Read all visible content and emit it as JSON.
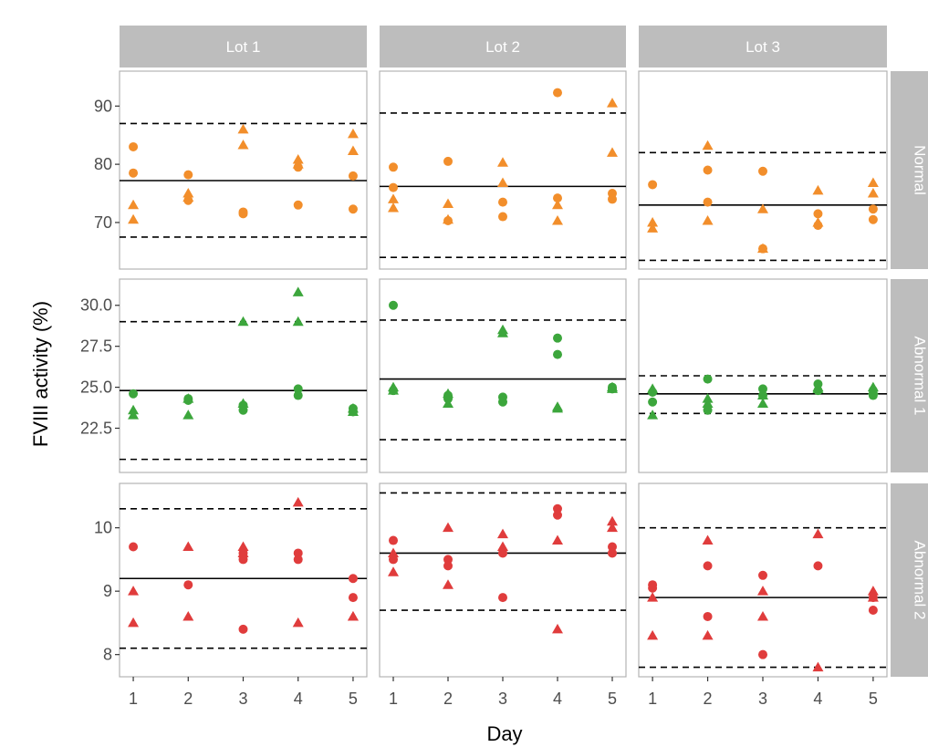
{
  "chart_data": {
    "type": "scatter",
    "xlabel": "Day",
    "ylabel": "FVIII activity (%)",
    "columns": [
      "Lot 1",
      "Lot 2",
      "Lot 3"
    ],
    "rows": [
      "Normal",
      "Abnormal 1",
      "Abnormal 2"
    ],
    "x_ticks": [
      "1",
      "2",
      "3",
      "4",
      "5"
    ],
    "xlim": [
      0.75,
      5.25
    ],
    "row_scales": [
      {
        "ylim": [
          62,
          96
        ],
        "ticks": [
          70,
          80,
          90
        ],
        "tick_labels": [
          "70",
          "80",
          "90"
        ]
      },
      {
        "ylim": [
          19.8,
          31.6
        ],
        "ticks": [
          22.5,
          25,
          27.5,
          30
        ],
        "tick_labels": [
          "22.5",
          "25.0",
          "27.5",
          "30.0"
        ]
      },
      {
        "ylim": [
          7.65,
          10.7
        ],
        "ticks": [
          8,
          9,
          10
        ],
        "tick_labels": [
          "8",
          "9",
          "10"
        ]
      }
    ],
    "row_colors": [
      "#f28e2b",
      "#3ca63c",
      "#e03c3c"
    ],
    "marker_types": [
      "circle",
      "triangle"
    ],
    "grid": false,
    "panels": [
      {
        "row": 0,
        "col": 0,
        "mean": 77.2,
        "lower": 67.5,
        "upper": 87.0,
        "circles": [
          [
            1,
            83.0
          ],
          [
            1,
            78.5
          ],
          [
            2,
            78.2
          ],
          [
            2,
            73.8
          ],
          [
            3,
            71.5
          ],
          [
            3,
            71.8
          ],
          [
            4,
            79.5
          ],
          [
            4,
            73.0
          ],
          [
            5,
            78.0
          ],
          [
            5,
            72.3
          ]
        ],
        "triangles": [
          [
            1,
            73.0
          ],
          [
            1,
            70.5
          ],
          [
            2,
            75.0
          ],
          [
            2,
            74.3
          ],
          [
            3,
            86.0
          ],
          [
            3,
            83.3
          ],
          [
            4,
            80.8
          ],
          [
            4,
            80.0
          ],
          [
            5,
            85.2
          ],
          [
            5,
            82.3
          ]
        ]
      },
      {
        "row": 0,
        "col": 1,
        "mean": 76.2,
        "lower": 64.0,
        "upper": 88.8,
        "circles": [
          [
            1,
            79.5
          ],
          [
            1,
            76.0
          ],
          [
            2,
            80.5
          ],
          [
            2,
            70.3
          ],
          [
            3,
            73.5
          ],
          [
            3,
            71.0
          ],
          [
            4,
            92.3
          ],
          [
            4,
            74.2
          ],
          [
            5,
            75.0
          ],
          [
            5,
            74.0
          ]
        ],
        "triangles": [
          [
            1,
            74.0
          ],
          [
            1,
            72.5
          ],
          [
            2,
            73.2
          ],
          [
            2,
            70.5
          ],
          [
            3,
            80.3
          ],
          [
            3,
            76.8
          ],
          [
            4,
            73.0
          ],
          [
            4,
            70.3
          ],
          [
            5,
            90.5
          ],
          [
            5,
            82.0
          ]
        ]
      },
      {
        "row": 0,
        "col": 2,
        "mean": 73.0,
        "lower": 63.5,
        "upper": 82.0,
        "circles": [
          [
            1,
            76.5
          ],
          [
            2,
            79.0
          ],
          [
            2,
            73.5
          ],
          [
            3,
            78.8
          ],
          [
            3,
            65.5
          ],
          [
            4,
            71.5
          ],
          [
            4,
            69.5
          ],
          [
            5,
            72.3
          ],
          [
            5,
            70.5
          ]
        ],
        "triangles": [
          [
            1,
            70.0
          ],
          [
            1,
            69.0
          ],
          [
            2,
            83.2
          ],
          [
            2,
            70.3
          ],
          [
            3,
            72.3
          ],
          [
            3,
            65.5
          ],
          [
            4,
            75.5
          ],
          [
            4,
            70.0
          ],
          [
            5,
            76.8
          ],
          [
            5,
            75.0
          ]
        ]
      },
      {
        "row": 1,
        "col": 0,
        "mean": 24.8,
        "lower": 20.6,
        "upper": 29.0,
        "circles": [
          [
            1,
            24.6
          ],
          [
            2,
            24.3
          ],
          [
            2,
            24.2
          ],
          [
            3,
            23.9
          ],
          [
            3,
            23.6
          ],
          [
            4,
            24.9
          ],
          [
            4,
            24.5
          ],
          [
            5,
            23.7
          ],
          [
            5,
            23.5
          ]
        ],
        "triangles": [
          [
            1,
            23.6
          ],
          [
            1,
            23.3
          ],
          [
            2,
            24.3
          ],
          [
            2,
            23.3
          ],
          [
            3,
            29.0
          ],
          [
            3,
            24.0
          ],
          [
            4,
            30.8
          ],
          [
            4,
            29.0
          ],
          [
            5,
            23.7
          ],
          [
            5,
            23.5
          ]
        ]
      },
      {
        "row": 1,
        "col": 1,
        "mean": 25.5,
        "lower": 21.8,
        "upper": 29.1,
        "circles": [
          [
            1,
            30.0
          ],
          [
            1,
            24.8
          ],
          [
            2,
            24.5
          ],
          [
            2,
            24.3
          ],
          [
            3,
            24.4
          ],
          [
            3,
            24.1
          ],
          [
            4,
            28.0
          ],
          [
            4,
            27.0
          ],
          [
            5,
            25.0
          ],
          [
            5,
            24.9
          ]
        ],
        "triangles": [
          [
            1,
            25.0
          ],
          [
            1,
            24.8
          ],
          [
            2,
            24.6
          ],
          [
            2,
            24.0
          ],
          [
            3,
            28.5
          ],
          [
            3,
            28.3
          ],
          [
            4,
            23.8
          ],
          [
            4,
            23.7
          ],
          [
            5,
            25.0
          ],
          [
            5,
            24.9
          ]
        ]
      },
      {
        "row": 1,
        "col": 2,
        "mean": 24.6,
        "lower": 23.4,
        "upper": 25.7,
        "circles": [
          [
            1,
            24.7
          ],
          [
            1,
            24.1
          ],
          [
            2,
            25.5
          ],
          [
            2,
            23.6
          ],
          [
            3,
            24.9
          ],
          [
            3,
            24.5
          ],
          [
            4,
            25.2
          ],
          [
            4,
            24.8
          ],
          [
            5,
            24.8
          ],
          [
            5,
            24.5
          ]
        ],
        "triangles": [
          [
            1,
            24.9
          ],
          [
            1,
            23.3
          ],
          [
            2,
            24.3
          ],
          [
            2,
            24.0
          ],
          [
            3,
            24.5
          ],
          [
            3,
            24.0
          ],
          [
            4,
            25.0
          ],
          [
            4,
            24.9
          ],
          [
            5,
            25.0
          ],
          [
            5,
            24.8
          ]
        ]
      },
      {
        "row": 2,
        "col": 0,
        "mean": 9.2,
        "lower": 8.1,
        "upper": 10.3,
        "circles": [
          [
            1,
            9.7
          ],
          [
            2,
            9.1
          ],
          [
            3,
            9.6
          ],
          [
            3,
            9.5
          ],
          [
            3,
            8.4
          ],
          [
            4,
            9.6
          ],
          [
            4,
            9.5
          ],
          [
            5,
            9.2
          ],
          [
            5,
            8.9
          ]
        ],
        "triangles": [
          [
            1,
            9.0
          ],
          [
            1,
            8.5
          ],
          [
            2,
            9.7
          ],
          [
            2,
            8.6
          ],
          [
            3,
            9.7
          ],
          [
            3,
            9.6
          ],
          [
            4,
            10.4
          ],
          [
            4,
            8.5
          ],
          [
            5,
            8.6
          ],
          [
            5,
            8.6
          ]
        ]
      },
      {
        "row": 2,
        "col": 1,
        "mean": 9.6,
        "lower": 8.7,
        "upper": 10.55,
        "circles": [
          [
            1,
            9.8
          ],
          [
            1,
            9.5
          ],
          [
            2,
            9.5
          ],
          [
            2,
            9.4
          ],
          [
            3,
            9.6
          ],
          [
            3,
            8.9
          ],
          [
            4,
            10.3
          ],
          [
            4,
            10.2
          ],
          [
            5,
            9.7
          ],
          [
            5,
            9.6
          ]
        ],
        "triangles": [
          [
            1,
            9.6
          ],
          [
            1,
            9.3
          ],
          [
            2,
            10.0
          ],
          [
            2,
            9.1
          ],
          [
            3,
            9.9
          ],
          [
            3,
            9.7
          ],
          [
            4,
            9.8
          ],
          [
            4,
            8.4
          ],
          [
            5,
            10.1
          ],
          [
            5,
            10.0
          ]
        ]
      },
      {
        "row": 2,
        "col": 2,
        "mean": 8.9,
        "lower": 7.8,
        "upper": 10.0,
        "circles": [
          [
            1,
            9.1
          ],
          [
            1,
            9.05
          ],
          [
            2,
            9.4
          ],
          [
            2,
            8.6
          ],
          [
            3,
            9.25
          ],
          [
            3,
            8.0
          ],
          [
            4,
            9.4
          ],
          [
            5,
            8.9
          ],
          [
            5,
            8.7
          ]
        ],
        "triangles": [
          [
            1,
            8.9
          ],
          [
            1,
            8.3
          ],
          [
            2,
            9.8
          ],
          [
            2,
            8.3
          ],
          [
            3,
            9.0
          ],
          [
            3,
            8.6
          ],
          [
            4,
            9.9
          ],
          [
            4,
            7.8
          ],
          [
            5,
            9.0
          ],
          [
            5,
            8.9
          ]
        ]
      }
    ]
  }
}
